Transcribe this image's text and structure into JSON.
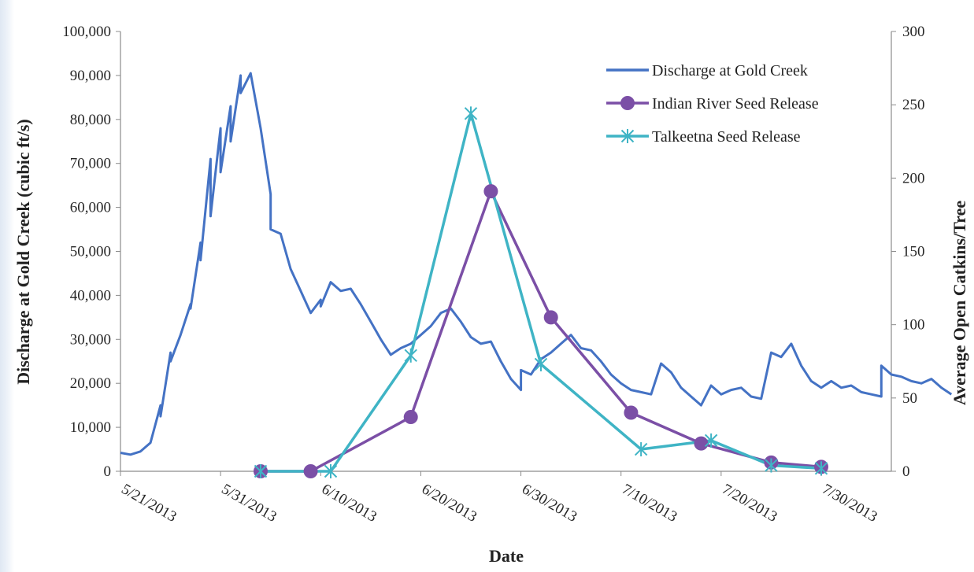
{
  "chart_data": {
    "type": "line",
    "title": "",
    "xlabel": "Date",
    "ylabel_left": "Discharge at Gold Creek (cubic ft/s)",
    "ylabel_right": "Average Open Catkins/Tree",
    "x_ticks": [
      "5/21/2013",
      "5/31/2013",
      "6/10/2013",
      "6/20/2013",
      "6/30/2013",
      "7/10/2013",
      "7/20/2013",
      "7/30/2013"
    ],
    "x_range": [
      "5/21/2013",
      "8/6/2013"
    ],
    "y_left": {
      "min": 0,
      "max": 100000,
      "step": 10000,
      "tick_labels": [
        "0",
        "10,000",
        "20,000",
        "30,000",
        "40,000",
        "50,000",
        "60,000",
        "70,000",
        "80,000",
        "90,000",
        "100,000"
      ]
    },
    "y_right": {
      "min": 0,
      "max": 300,
      "step": 50,
      "tick_labels": [
        "0",
        "50",
        "100",
        "150",
        "200",
        "250",
        "300"
      ]
    },
    "grid": false,
    "legend_position": "top-right",
    "series": [
      {
        "name": "Discharge at Gold Creek",
        "axis": "left",
        "color": "#4472c4",
        "marker": "none",
        "points": [
          [
            "5/21/2013",
            4200
          ],
          [
            "5/22/2013",
            3800
          ],
          [
            "5/23/2013",
            4500
          ],
          [
            "5/24/2013",
            6500
          ],
          [
            "5/25/2013",
            15000
          ],
          [
            "5/25/2013",
            12500
          ],
          [
            "5/26/2013",
            27000
          ],
          [
            "5/26/2013",
            25000
          ],
          [
            "5/27/2013",
            31000
          ],
          [
            "5/28/2013",
            38000
          ],
          [
            "5/28/2013",
            37000
          ],
          [
            "5/29/2013",
            52000
          ],
          [
            "5/29/2013",
            48000
          ],
          [
            "5/30/2013",
            71000
          ],
          [
            "5/30/2013",
            58000
          ],
          [
            "5/31/2013",
            78000
          ],
          [
            "5/31/2013",
            68000
          ],
          [
            "6/1/2013",
            83000
          ],
          [
            "6/1/2013",
            75000
          ],
          [
            "6/2/2013",
            90000
          ],
          [
            "6/2/2013",
            86000
          ],
          [
            "6/3/2013",
            90500
          ],
          [
            "6/4/2013",
            78000
          ],
          [
            "6/5/2013",
            63000
          ],
          [
            "6/5/2013",
            55000
          ],
          [
            "6/6/2013",
            54000
          ],
          [
            "6/7/2013",
            46000
          ],
          [
            "6/8/2013",
            41000
          ],
          [
            "6/9/2013",
            36000
          ],
          [
            "6/10/2013",
            39000
          ],
          [
            "6/10/2013",
            37500
          ],
          [
            "6/11/2013",
            43000
          ],
          [
            "6/12/2013",
            41000
          ],
          [
            "6/13/2013",
            41500
          ],
          [
            "6/14/2013",
            38000
          ],
          [
            "6/15/2013",
            34000
          ],
          [
            "6/16/2013",
            30000
          ],
          [
            "6/17/2013",
            26500
          ],
          [
            "6/18/2013",
            28000
          ],
          [
            "6/19/2013",
            29000
          ],
          [
            "6/20/2013",
            31000
          ],
          [
            "6/21/2013",
            33000
          ],
          [
            "6/22/2013",
            36000
          ],
          [
            "6/23/2013",
            37000
          ],
          [
            "6/24/2013",
            34000
          ],
          [
            "6/25/2013",
            30500
          ],
          [
            "6/26/2013",
            29000
          ],
          [
            "6/27/2013",
            29500
          ],
          [
            "6/28/2013",
            25000
          ],
          [
            "6/29/2013",
            21000
          ],
          [
            "6/30/2013",
            18500
          ],
          [
            "6/30/2013",
            23000
          ],
          [
            "7/1/2013",
            22000
          ],
          [
            "7/2/2013",
            25500
          ],
          [
            "7/3/2013",
            27000
          ],
          [
            "7/4/2013",
            29000
          ],
          [
            "7/5/2013",
            31000
          ],
          [
            "7/6/2013",
            28000
          ],
          [
            "7/7/2013",
            27500
          ],
          [
            "7/8/2013",
            25000
          ],
          [
            "7/9/2013",
            22000
          ],
          [
            "7/10/2013",
            20000
          ],
          [
            "7/11/2013",
            18500
          ],
          [
            "7/12/2013",
            18000
          ],
          [
            "7/13/2013",
            17500
          ],
          [
            "7/14/2013",
            24500
          ],
          [
            "7/15/2013",
            22500
          ],
          [
            "7/16/2013",
            19000
          ],
          [
            "7/17/2013",
            17000
          ],
          [
            "7/18/2013",
            15000
          ],
          [
            "7/19/2013",
            19500
          ],
          [
            "7/20/2013",
            17500
          ],
          [
            "7/21/2013",
            18500
          ],
          [
            "7/22/2013",
            19000
          ],
          [
            "7/23/2013",
            17000
          ],
          [
            "7/24/2013",
            16500
          ],
          [
            "7/25/2013",
            27000
          ],
          [
            "7/26/2013",
            26000
          ],
          [
            "7/27/2013",
            29000
          ],
          [
            "7/28/2013",
            24000
          ],
          [
            "7/29/2013",
            20500
          ],
          [
            "7/30/2013",
            19000
          ],
          [
            "7/31/2013",
            20500
          ],
          [
            "8/1/2013",
            19000
          ],
          [
            "8/2/2013",
            19500
          ],
          [
            "8/3/2013",
            18000
          ],
          [
            "8/4/2013",
            17500
          ],
          [
            "8/5/2013",
            17000
          ],
          [
            "8/5/2013",
            24000
          ],
          [
            "8/6/2013",
            22000
          ],
          [
            "8/7/2013",
            21500
          ],
          [
            "8/8/2013",
            20500
          ],
          [
            "8/9/2013",
            20000
          ],
          [
            "8/10/2013",
            21000
          ],
          [
            "8/11/2013",
            19000
          ],
          [
            "8/12/2013",
            17500
          ]
        ]
      },
      {
        "name": "Indian River Seed Release",
        "axis": "right",
        "color": "#7b4fa6",
        "marker": "circle",
        "points": [
          [
            "6/4/2013",
            0
          ],
          [
            "6/9/2013",
            0
          ],
          [
            "6/19/2013",
            37
          ],
          [
            "6/27/2013",
            191
          ],
          [
            "7/3/2013",
            105
          ],
          [
            "7/11/2013",
            40
          ],
          [
            "7/18/2013",
            19
          ],
          [
            "7/25/2013",
            6
          ],
          [
            "7/30/2013",
            3
          ]
        ]
      },
      {
        "name": "Talkeetna Seed Release",
        "axis": "right",
        "color": "#3fb4c5",
        "marker": "star",
        "points": [
          [
            "6/4/2013",
            0
          ],
          [
            "6/11/2013",
            0
          ],
          [
            "6/19/2013",
            79
          ],
          [
            "6/25/2013",
            244
          ],
          [
            "7/2/2013",
            73
          ],
          [
            "7/12/2013",
            15
          ],
          [
            "7/19/2013",
            21
          ],
          [
            "7/25/2013",
            4
          ],
          [
            "7/30/2013",
            2
          ]
        ]
      }
    ]
  }
}
